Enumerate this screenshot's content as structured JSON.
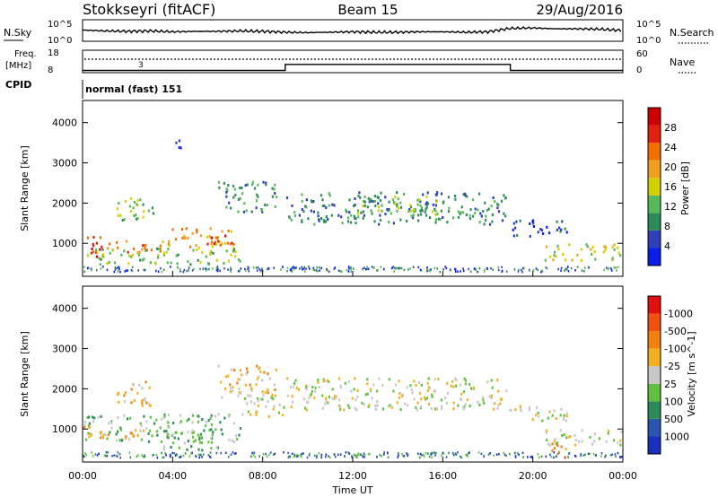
{
  "header": {
    "station": "Stokkseyri (fitACF)",
    "beam": "Beam 15",
    "date": "29/Aug/2016"
  },
  "panels": {
    "nsky_label": "N.Sky",
    "nsearch_label": "N.Search",
    "nsky_ticks": [
      "10^5",
      "10^0"
    ],
    "nsearch_ticks": [
      "10^5",
      "10^0"
    ],
    "freq_label": "Freq.",
    "freq_unit": "[MHz]",
    "freq_ticks": [
      "18",
      "8"
    ],
    "freq_marker": "3",
    "nave_label": "Nave",
    "nave_ticks": [
      "60",
      "0"
    ],
    "cpid_label": "CPID",
    "cpid_value": "normal (fast) 151"
  },
  "chart_data": [
    {
      "type": "line",
      "name": "N.Sky",
      "x": [
        "00:00",
        "01:00",
        "02:00",
        "03:00",
        "04:00",
        "05:00",
        "06:00",
        "07:00",
        "08:00",
        "09:00",
        "10:00",
        "11:00",
        "12:00",
        "13:00",
        "14:00",
        "15:00",
        "16:00",
        "17:00",
        "18:00",
        "19:00",
        "20:00",
        "21:00",
        "22:00",
        "23:00",
        "24:00"
      ],
      "values": [
        2.6,
        2.4,
        2.3,
        2.4,
        2.2,
        2.3,
        2.3,
        2.4,
        2.3,
        2.1,
        2.0,
        2.1,
        2.2,
        2.1,
        2.1,
        2.2,
        2.2,
        2.1,
        2.2,
        3.0,
        3.1,
        2.9,
        2.9,
        2.8,
        2.5
      ],
      "ylim": [
        0,
        5
      ]
    },
    {
      "type": "line",
      "name": "Freq./Nave",
      "x": [
        "00:00",
        "09:00",
        "09:00",
        "19:00",
        "19:00",
        "24:00"
      ],
      "values": [
        9.0,
        9.0,
        11.7,
        11.7,
        9.0,
        9.0
      ],
      "ylim": [
        8,
        18
      ]
    },
    {
      "type": "heatmap",
      "title": "Beam 15",
      "xlabel": "",
      "ylabel": "Slant Range [km]",
      "x_ticks": [
        "00:00",
        "04:00",
        "08:00",
        "12:00",
        "16:00",
        "20:00",
        "00:00"
      ],
      "y_ticks": [
        "1000",
        "2000",
        "3000",
        "4000"
      ],
      "xlim_hours": [
        0,
        24
      ],
      "ylim": [
        180,
        4550
      ],
      "colorbar_label": "Power [dB]",
      "colorbar_ticks": [
        "4",
        "8",
        "12",
        "16",
        "20",
        "24",
        "28"
      ],
      "colors": [
        "#0a1ee8",
        "#2f3fb8",
        "#2e8a56",
        "#58b85a",
        "#d4d000",
        "#f0a020",
        "#f07000",
        "#e02010",
        "#cc0000"
      ],
      "regions": [
        {
          "t": [
            0.0,
            1.0
          ],
          "r": [
            700,
            1200
          ],
          "level": 7
        },
        {
          "t": [
            1.0,
            3.5
          ],
          "r": [
            800,
            1100
          ],
          "level": 6
        },
        {
          "t": [
            3.5,
            6.8
          ],
          "r": [
            900,
            1400
          ],
          "level": 5
        },
        {
          "t": [
            5.5,
            6.8
          ],
          "r": [
            1000,
            1300
          ],
          "level": 7
        },
        {
          "t": [
            0.0,
            7.0
          ],
          "r": [
            500,
            900
          ],
          "level": 3
        },
        {
          "t": [
            1.5,
            3.2
          ],
          "r": [
            1600,
            2200
          ],
          "level": 3
        },
        {
          "t": [
            6.0,
            8.6
          ],
          "r": [
            1800,
            2600
          ],
          "level": 2
        },
        {
          "t": [
            9.0,
            18.8
          ],
          "r": [
            1500,
            2300
          ],
          "level": 2
        },
        {
          "t": [
            12.0,
            16.0
          ],
          "r": [
            1700,
            2200
          ],
          "level": 3
        },
        {
          "t": [
            18.8,
            21.5
          ],
          "r": [
            1200,
            1600
          ],
          "level": 1
        },
        {
          "t": [
            20.5,
            24.0
          ],
          "r": [
            600,
            1000
          ],
          "level": 4
        },
        {
          "t": [
            3.8,
            4.5
          ],
          "r": [
            3400,
            3600
          ],
          "level": 1
        }
      ]
    },
    {
      "type": "heatmap",
      "title": "",
      "xlabel": "Time UT",
      "ylabel": "Slant Range [km]",
      "x_ticks": [
        "00:00",
        "04:00",
        "08:00",
        "12:00",
        "16:00",
        "20:00",
        "00:00"
      ],
      "y_ticks": [
        "1000",
        "2000",
        "3000",
        "4000"
      ],
      "xlim_hours": [
        0,
        24
      ],
      "ylim": [
        180,
        4550
      ],
      "colorbar_label": "Velocity [m s^-1]",
      "colorbar_ticks": [
        "1000",
        "500",
        "100",
        "25",
        "-25",
        "-100",
        "-500",
        "-1000"
      ],
      "colors": [
        "#1a2fc0",
        "#2a55b0",
        "#2e8a56",
        "#60c040",
        "#c8c8c8",
        "#f0b020",
        "#f08010",
        "#f05010",
        "#e01010"
      ],
      "regions": [
        {
          "t": [
            0.0,
            7.0
          ],
          "r": [
            700,
            1400
          ],
          "level": 3
        },
        {
          "t": [
            0.0,
            3.0
          ],
          "r": [
            800,
            1100
          ],
          "level": 5
        },
        {
          "t": [
            1.5,
            3.2
          ],
          "r": [
            1600,
            2200
          ],
          "level": 5
        },
        {
          "t": [
            6.0,
            8.6
          ],
          "r": [
            1800,
            2600
          ],
          "level": 5
        },
        {
          "t": [
            9.0,
            18.8
          ],
          "r": [
            1500,
            2300
          ],
          "level": 4
        },
        {
          "t": [
            7.0,
            9.0
          ],
          "r": [
            1300,
            1900
          ],
          "level": 4
        },
        {
          "t": [
            18.8,
            21.5
          ],
          "r": [
            1200,
            1600
          ],
          "level": 4
        },
        {
          "t": [
            20.5,
            24.0
          ],
          "r": [
            600,
            1000
          ],
          "level": 4
        },
        {
          "t": [
            20.8,
            21.6
          ],
          "r": [
            300,
            700
          ],
          "level": 6
        },
        {
          "t": [
            3.5,
            6.0
          ],
          "r": [
            500,
            900
          ],
          "level": 3
        }
      ]
    }
  ]
}
